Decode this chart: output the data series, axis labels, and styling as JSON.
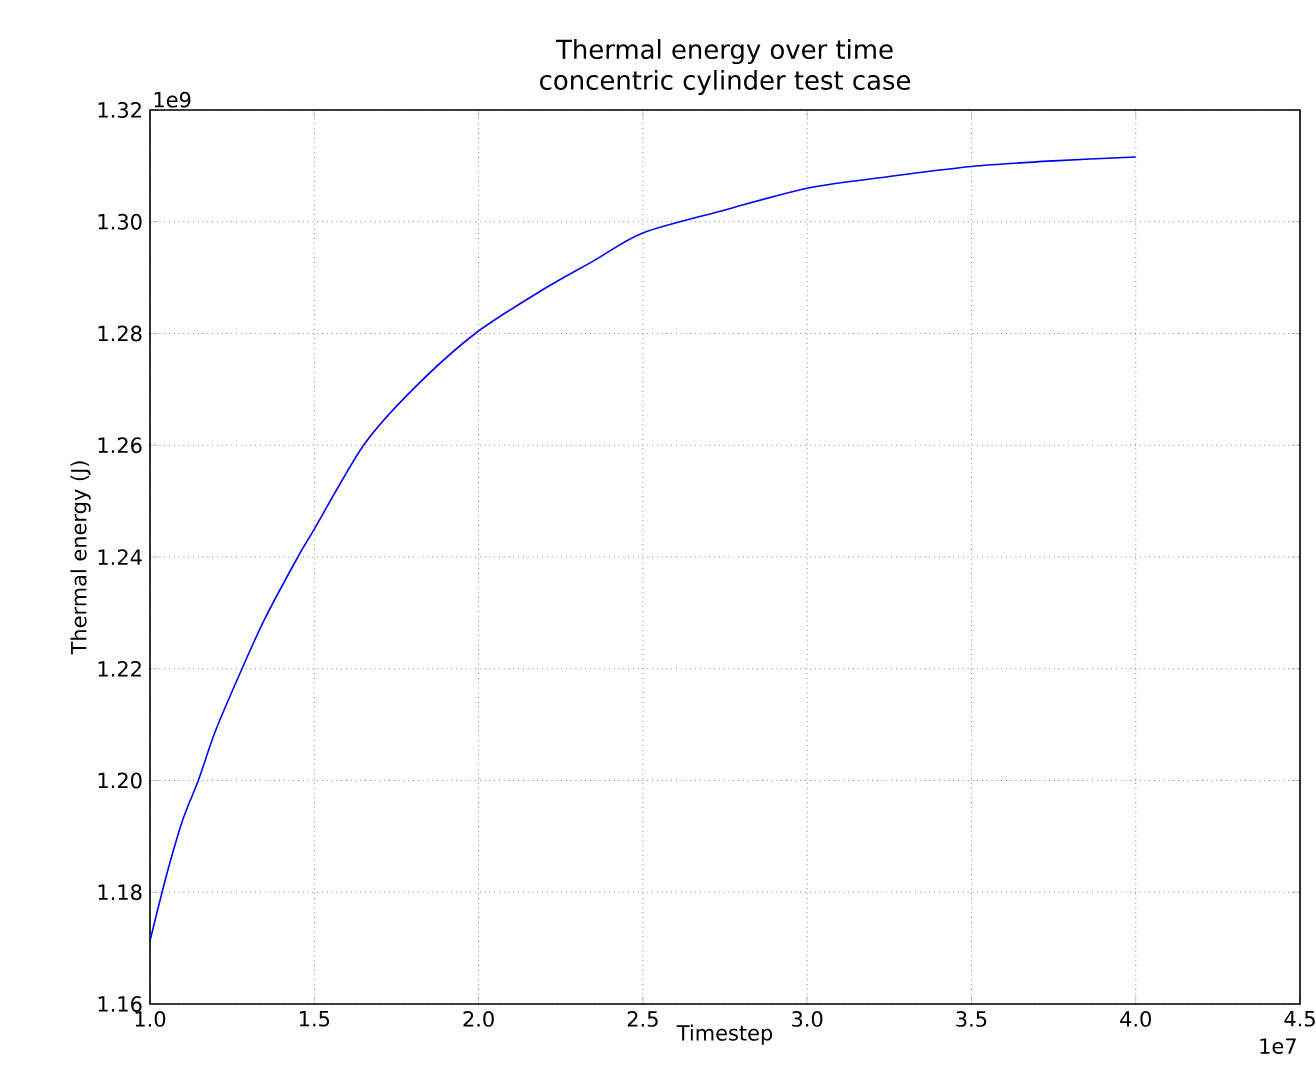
{
  "chart_data": {
    "type": "line",
    "title": "Thermal energy over time\nconcentric cylinder test case",
    "xlabel": "Timestep",
    "ylabel": "Thermal energy (J)",
    "annotations": [
      "1e9",
      "1e7"
    ],
    "x": [
      1.0,
      1.05,
      1.1,
      1.147,
      1.2,
      1.28,
      1.35,
      1.45,
      1.5,
      1.65,
      1.8,
      1.99,
      2.2,
      2.35,
      2.5,
      2.75,
      3.0,
      3.25,
      3.5,
      3.75,
      4.0
    ],
    "series": [
      {
        "color": "#0000ff",
        "values": [
          1.1713,
          1.183,
          1.193,
          1.2,
          1.209,
          1.22,
          1.229,
          1.24,
          1.245,
          1.26,
          1.27,
          1.28,
          1.288,
          1.293,
          1.298,
          1.3021,
          1.306,
          1.3081,
          1.3099,
          1.3109,
          1.3116
        ]
      }
    ],
    "xlim": [
      1.0,
      4.5
    ],
    "ylim": [
      1.16,
      1.32
    ],
    "xticks": [
      {
        "value": 1.0,
        "label": "1.0"
      },
      {
        "value": 1.5,
        "label": "1.5"
      },
      {
        "value": 2.0,
        "label": "2.0"
      },
      {
        "value": 2.5,
        "label": "2.5"
      },
      {
        "value": 3.0,
        "label": "3.0"
      },
      {
        "value": 3.5,
        "label": "3.5"
      },
      {
        "value": 4.0,
        "label": "4.0"
      },
      {
        "value": 4.5,
        "label": "4.5"
      }
    ],
    "yticks": [
      1.16,
      1.18,
      {
        "value": 1.2,
        "label": "1.20"
      },
      1.22,
      1.24,
      1.26,
      1.28,
      {
        "value": 1.3,
        "label": "1.30"
      },
      1.32
    ],
    "grid": true,
    "marker": "none",
    "line_style": "solid"
  }
}
